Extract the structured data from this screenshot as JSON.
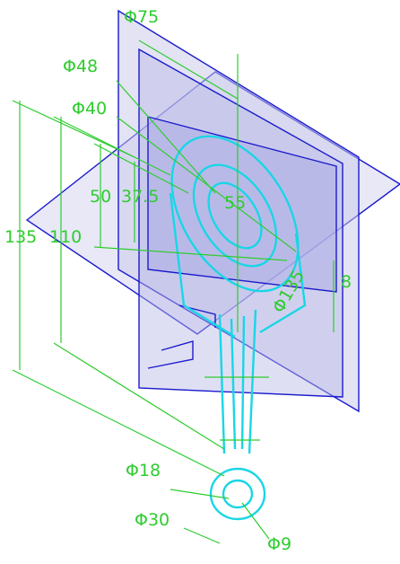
{
  "dimensions": {
    "phi75": "Φ75",
    "phi48": "Φ48",
    "phi40": "Φ40",
    "d50": "50",
    "d37_5": "37.5",
    "d55": "55",
    "d135": "135",
    "d110": "110",
    "d8": "8",
    "phi135": "Φ135",
    "phi18": "Φ18",
    "phi30": "Φ30",
    "phi9": "Φ9"
  }
}
